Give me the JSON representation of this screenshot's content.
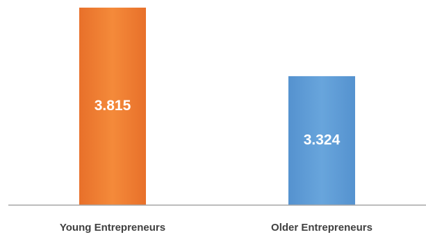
{
  "chart_data": {
    "type": "bar",
    "categories": [
      "Young Entrepreneurs",
      "Older Entrepreneurs"
    ],
    "values": [
      3.815,
      3.324
    ],
    "data_labels": [
      "3.815",
      "3.324"
    ],
    "colors": [
      "#f07b2c",
      "#5b9bd5"
    ],
    "ylim": [
      2.4,
      3.83
    ],
    "grid": false,
    "legend": "none",
    "axis_color": "#a6a6a6",
    "label_color": "#404040"
  }
}
